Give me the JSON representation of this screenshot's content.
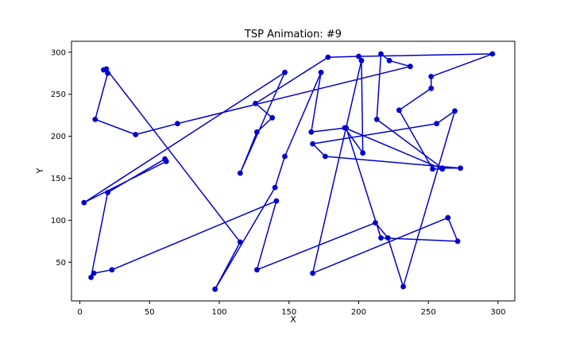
{
  "chart_data": {
    "type": "line",
    "title": "TSP Animation: #9",
    "xlabel": "X",
    "ylabel": "Y",
    "xlim": [
      -6,
      312
    ],
    "ylim": [
      4,
      313
    ],
    "xticks": [
      0,
      50,
      100,
      150,
      200,
      250,
      300
    ],
    "yticks": [
      50,
      100,
      150,
      200,
      250,
      300
    ],
    "grid": false,
    "colors": {
      "series": "#0000cc",
      "axes": "#000000",
      "background": "#ffffff"
    },
    "series": [
      {
        "marker": "circle",
        "x": [
          17,
          20,
          11,
          40,
          70,
          237,
          222,
          216,
          213,
          260,
          273,
          176,
          167,
          256,
          269,
          232,
          221,
          212,
          127,
          141,
          23,
          10,
          8,
          20,
          61,
          62,
          3,
          147,
          115,
          127,
          138,
          126,
          178,
          200,
          296,
          252,
          252,
          229,
          253,
          260,
          190,
          203,
          202,
          167,
          264,
          271,
          216,
          191,
          166,
          173,
          147,
          140,
          97,
          115,
          19
        ],
        "y": [
          279,
          275,
          220,
          202,
          215,
          283,
          290,
          298,
          220,
          162,
          162,
          176,
          191,
          215,
          230,
          21,
          79,
          97,
          41,
          123,
          41,
          37,
          32,
          133,
          173,
          170,
          121,
          276,
          156,
          205,
          222,
          239,
          294,
          295,
          298,
          271,
          257,
          231,
          161,
          161,
          210,
          180,
          290,
          37,
          103,
          75,
          79,
          210,
          205,
          276,
          176,
          139,
          18,
          74,
          280
        ]
      }
    ]
  }
}
